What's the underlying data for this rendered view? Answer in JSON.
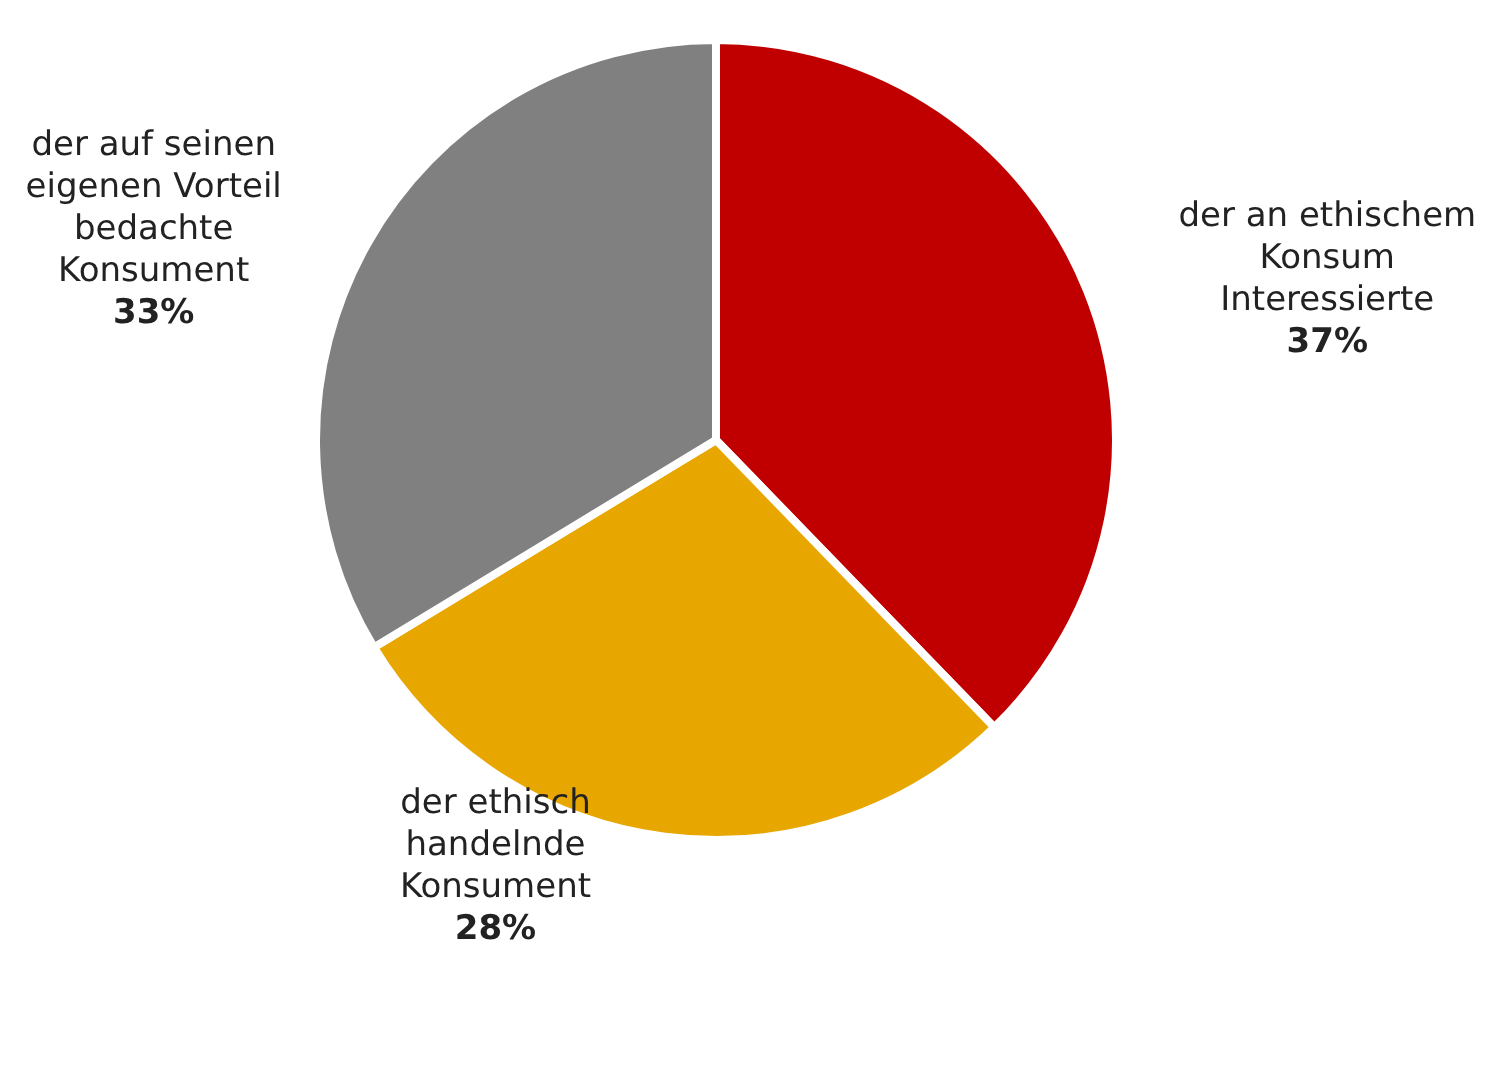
{
  "chart_data": {
    "type": "pie",
    "categories": [
      "der an ethischem Konsum Interessierte",
      "der ethisch handelnde Konsument",
      "der auf seinen eigenen Vorteil bedachte Konsument"
    ],
    "values": [
      37,
      28,
      33
    ],
    "value_labels": [
      "37%",
      "28%",
      "33%"
    ],
    "colors": [
      "#c00000",
      "#e8a600",
      "#808080"
    ],
    "legend": false
  }
}
